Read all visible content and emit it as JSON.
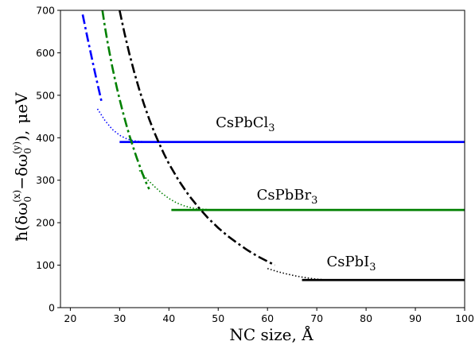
{
  "chart_data": {
    "type": "line",
    "xlabel": "NC size, Å",
    "ylabel": {
      "hbar": "ħ",
      "lparen": "(",
      "delta1": "δω",
      "sub1": "0",
      "sup1": "(x)",
      "minus": "−",
      "delta2": "δω",
      "sub2": "0",
      "sup2": "(y)",
      "rparen": "),",
      "unit": "μeV"
    },
    "xlim": [
      18,
      100
    ],
    "ylim": [
      0,
      700
    ],
    "xticks": [
      20,
      30,
      40,
      50,
      60,
      70,
      80,
      90,
      100
    ],
    "yticks": [
      0,
      100,
      200,
      300,
      400,
      500,
      600,
      700
    ],
    "series": [
      {
        "label": {
          "base": "CsPbCl",
          "sub": "3"
        },
        "color": "#0000ff",
        "label_pos": {
          "x": 55.5,
          "y": 425
        },
        "dashdot": [
          [
            22.5,
            690
          ],
          [
            23,
            662
          ],
          [
            23.5,
            634
          ],
          [
            24,
            607
          ],
          [
            24.5,
            580
          ],
          [
            25,
            553
          ],
          [
            25.5,
            527
          ],
          [
            26,
            502
          ],
          [
            26.3,
            487
          ]
        ],
        "dotted": [
          [
            25.5,
            468
          ],
          [
            27,
            441
          ],
          [
            28.5,
            420
          ],
          [
            30,
            406
          ],
          [
            31.5,
            397
          ],
          [
            33,
            392.5
          ],
          [
            34.5,
            391
          ],
          [
            36,
            390
          ]
        ],
        "flat": {
          "x": [
            30,
            100
          ],
          "y": 390
        }
      },
      {
        "label": {
          "base": "CsPbBr",
          "sub": "3"
        },
        "color": "#008000",
        "label_pos": {
          "x": 64,
          "y": 255
        },
        "dashdot": [
          [
            26.5,
            700
          ],
          [
            27,
            662
          ],
          [
            27.5,
            628
          ],
          [
            28,
            597
          ],
          [
            28.5,
            568
          ],
          [
            29,
            541
          ],
          [
            29.5,
            515
          ],
          [
            30,
            491
          ],
          [
            30.5,
            468
          ],
          [
            31,
            446
          ],
          [
            31.5,
            425
          ],
          [
            32,
            405
          ],
          [
            32.5,
            387
          ],
          [
            33,
            369
          ],
          [
            33.5,
            352
          ],
          [
            34,
            336
          ],
          [
            34.5,
            320
          ],
          [
            35,
            305
          ],
          [
            35.5,
            291
          ],
          [
            36,
            279
          ]
        ],
        "dotted": [
          [
            34,
            323
          ],
          [
            35.5,
            303
          ],
          [
            37,
            286
          ],
          [
            38.5,
            270
          ],
          [
            40,
            257
          ],
          [
            41.5,
            247
          ],
          [
            43,
            240
          ],
          [
            44.5,
            235
          ],
          [
            46,
            232
          ],
          [
            48,
            231
          ]
        ],
        "flat": {
          "x": [
            40.5,
            100
          ],
          "y": 230
        }
      },
      {
        "label": {
          "base": "CsPbI",
          "sub": "3"
        },
        "color": "#000000",
        "label_pos": {
          "x": 77,
          "y": 97
        },
        "dashdot": [
          [
            30,
            700
          ],
          [
            31,
            646
          ],
          [
            32,
            597
          ],
          [
            33,
            553
          ],
          [
            34,
            513
          ],
          [
            35,
            477
          ],
          [
            36,
            444
          ],
          [
            37,
            414
          ],
          [
            38,
            387
          ],
          [
            39,
            362
          ],
          [
            40,
            339
          ],
          [
            42,
            299
          ],
          [
            44,
            265
          ],
          [
            46,
            236
          ],
          [
            48,
            210
          ],
          [
            50,
            188
          ],
          [
            52,
            168
          ],
          [
            54,
            151
          ],
          [
            56,
            135
          ],
          [
            58,
            121
          ],
          [
            60,
            109
          ],
          [
            61.5,
            100
          ]
        ],
        "dotted": [
          [
            60,
            92
          ],
          [
            62,
            85
          ],
          [
            64,
            79
          ],
          [
            66,
            74
          ],
          [
            68,
            70
          ],
          [
            70,
            67
          ],
          [
            72,
            65.5
          ],
          [
            74,
            65
          ]
        ],
        "flat": {
          "x": [
            67,
            100
          ],
          "y": 65
        }
      }
    ]
  }
}
